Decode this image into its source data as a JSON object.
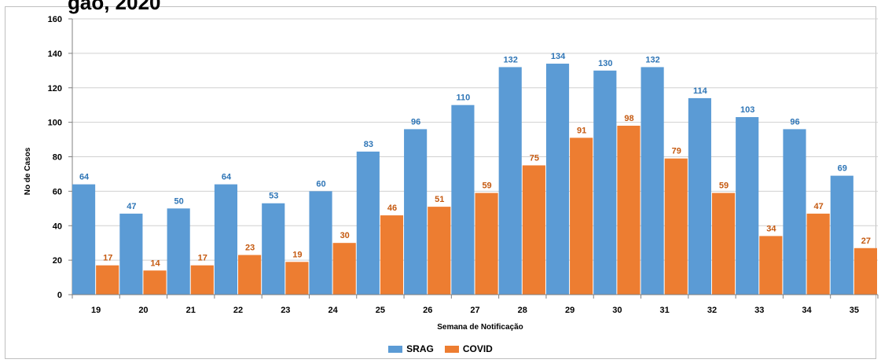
{
  "title_fragment": "gão, 2020",
  "chart_data": {
    "type": "bar",
    "categories": [
      "19",
      "20",
      "21",
      "22",
      "23",
      "24",
      "25",
      "26",
      "27",
      "28",
      "29",
      "30",
      "31",
      "32",
      "33",
      "34",
      "35"
    ],
    "series": [
      {
        "name": "SRAG",
        "color": "#5B9BD5",
        "label_color": "#2E75B6",
        "values": [
          64,
          47,
          50,
          64,
          53,
          60,
          83,
          96,
          110,
          132,
          134,
          130,
          132,
          114,
          103,
          96,
          69
        ]
      },
      {
        "name": "COVID",
        "color": "#ED7D31",
        "label_color": "#C55A11",
        "values": [
          17,
          14,
          17,
          23,
          19,
          30,
          46,
          51,
          59,
          75,
          91,
          98,
          79,
          59,
          34,
          47,
          27
        ]
      }
    ],
    "xlabel": "Semana de Notificação",
    "ylabel": "No de Casos",
    "ylim": [
      0,
      160
    ],
    "yticks": [
      "0",
      "20",
      "40",
      "60",
      "80",
      "100",
      "120",
      "140",
      "160"
    ],
    "grid": true,
    "legend_position": "bottom"
  }
}
